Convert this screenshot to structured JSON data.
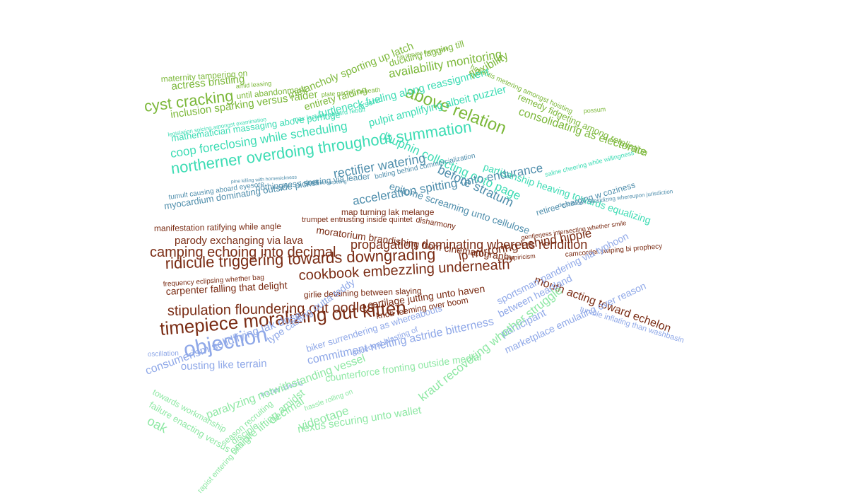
{
  "palette": {
    "green": "#7cb83a",
    "teal": "#3ddcb4",
    "steel": "#4f8eac",
    "maroon": "#7a2c14",
    "blue": "#8fa8e8",
    "mint": "#8ee8a4"
  },
  "phrases": [
    {
      "text": "maternity tampering on",
      "color": "green",
      "size": 12
    },
    {
      "text": "actress bristling",
      "color": "green",
      "size": 15
    },
    {
      "text": "amid leasing",
      "color": "green",
      "size": 9
    },
    {
      "text": "melancholy sporting up latch",
      "color": "green",
      "size": 15
    },
    {
      "text": "cyst cracking",
      "color": "green",
      "size": 22
    },
    {
      "text": "until abandonment",
      "color": "green",
      "size": 12
    },
    {
      "text": "inclusion sparking versus raider",
      "color": "green",
      "size": 15
    },
    {
      "text": "entirety raiding",
      "color": "green",
      "size": 14
    },
    {
      "text": "availability monitoring",
      "color": "green",
      "size": 17
    },
    {
      "text": "above relation",
      "color": "green",
      "size": 24
    },
    {
      "text": "duckling lagging till",
      "color": "green",
      "size": 13
    },
    {
      "text": "flexibility",
      "color": "green",
      "size": 16
    },
    {
      "text": "remedy fidgeting among retaliation",
      "color": "green",
      "size": 13
    },
    {
      "text": "consolidating as electorate",
      "color": "green",
      "size": 16
    },
    {
      "text": "hepatitis metering amongst hoisting",
      "color": "green",
      "size": 10
    },
    {
      "text": "possum",
      "color": "green",
      "size": 9
    },
    {
      "text": "plate pacing beneath",
      "color": "green",
      "size": 9
    },
    {
      "text": "rue obeying during rage",
      "color": "green",
      "size": 7
    },
    {
      "text": "turtleneck fueling along reassignment",
      "color": "teal",
      "size": 15
    },
    {
      "text": "arsenic",
      "color": "teal",
      "size": 11
    },
    {
      "text": "mathematician massaging above porridge",
      "color": "teal",
      "size": 13
    },
    {
      "text": "coop foreclosing while scheduling",
      "color": "teal",
      "size": 17
    },
    {
      "text": "pulpit amplifying albeit puzzler",
      "color": "teal",
      "size": 15
    },
    {
      "text": "dauphin collecting onto page",
      "color": "teal",
      "size": 17
    },
    {
      "text": "northerner overdoing throughout summation",
      "color": "teal",
      "size": 22
    },
    {
      "text": "partisanship heaving towards equalizing",
      "color": "teal",
      "size": 14
    },
    {
      "text": "saline cheering while willingness",
      "color": "teal",
      "size": 9
    },
    {
      "text": "max lacking aboard rebuff",
      "color": "teal",
      "size": 9
    },
    {
      "text": "legislation spicing amongst examination",
      "color": "teal",
      "size": 8
    },
    {
      "text": "rectifier watering",
      "color": "steel",
      "size": 18
    },
    {
      "text": "before stratum",
      "color": "steel",
      "size": 18
    },
    {
      "text": "bolting behind commercialization",
      "color": "steel",
      "size": 10
    },
    {
      "text": "nothingness snoring via leader",
      "color": "steel",
      "size": 12
    },
    {
      "text": "tumult causing aboard eyesore",
      "color": "steel",
      "size": 10
    },
    {
      "text": "epitome screaming unto cellulose",
      "color": "steel",
      "size": 14
    },
    {
      "text": "myocardium dominating outside picket",
      "color": "steel",
      "size": 13
    },
    {
      "text": "acceleration spitting unto endurance",
      "color": "steel",
      "size": 17
    },
    {
      "text": "retiree charging w coziness",
      "color": "steel",
      "size": 12
    },
    {
      "text": "deportation subsidizing whereupon jurisdiction",
      "color": "steel",
      "size": 8
    },
    {
      "text": "pine killing with homesickness",
      "color": "steel",
      "size": 7
    },
    {
      "text": "newsprint carpeting",
      "color": "steel",
      "size": 7
    },
    {
      "text": "map turning lak melange",
      "color": "maroon",
      "size": 12
    },
    {
      "text": "trumpet entrusting inside quintet",
      "color": "maroon",
      "size": 11
    },
    {
      "text": "disharmony",
      "color": "maroon",
      "size": 11
    },
    {
      "text": "manifestation ratifying while angle",
      "color": "maroon",
      "size": 12
    },
    {
      "text": "parody exchanging via lava",
      "color": "maroon",
      "size": 15
    },
    {
      "text": "moratorium brandishing from cinematography",
      "color": "maroon",
      "size": 14
    },
    {
      "text": "camping echoing into decimal",
      "color": "maroon",
      "size": 20
    },
    {
      "text": "propagation dominating whereas rendition",
      "color": "maroon",
      "size": 18
    },
    {
      "text": "ridicule triggering towards downgrading",
      "color": "maroon",
      "size": 22
    },
    {
      "text": "ip mirroring behind hippie",
      "color": "maroon",
      "size": 17
    },
    {
      "text": "cookbook embezzling underneath",
      "color": "maroon",
      "size": 20
    },
    {
      "text": "empiricism",
      "color": "maroon",
      "size": 9
    },
    {
      "text": "gentleness intersecting whether smile",
      "color": "maroon",
      "size": 9
    },
    {
      "text": "camcorder swiping bi prophecy",
      "color": "maroon",
      "size": 10
    },
    {
      "text": "carpenter falling that delight",
      "color": "maroon",
      "size": 14
    },
    {
      "text": "frequency eclipsing whether bag",
      "color": "maroon",
      "size": 10
    },
    {
      "text": "girlie detaining between slaying",
      "color": "maroon",
      "size": 12
    },
    {
      "text": "stipulation floundering out oodles",
      "color": "maroon",
      "size": 20
    },
    {
      "text": "timepiece moralizing out kitten",
      "color": "maroon",
      "size": 26
    },
    {
      "text": "cartilage jutting unto haven",
      "color": "maroon",
      "size": 14
    },
    {
      "text": "knob teeming over boom",
      "color": "maroon",
      "size": 12
    },
    {
      "text": "mouth acting toward echelon",
      "color": "maroon",
      "size": 16
    },
    {
      "text": "objection",
      "color": "blue",
      "size": 30
    },
    {
      "text": "type casting outta teddy",
      "color": "blue",
      "size": 14
    },
    {
      "text": "biker surrendering as whereabouts",
      "color": "blue",
      "size": 13
    },
    {
      "text": "commitment melting astride bitterness",
      "color": "blue",
      "size": 16
    },
    {
      "text": "sportsman pandering via typhoon",
      "color": "blue",
      "size": 14
    },
    {
      "text": "tumble inflating than washbasin",
      "color": "blue",
      "size": 11
    },
    {
      "text": "ousting like terrain",
      "color": "blue",
      "size": 15
    },
    {
      "text": "consumerism solidifying lak dose",
      "color": "blue",
      "size": 16
    },
    {
      "text": "decedent blasting of",
      "color": "blue",
      "size": 11
    },
    {
      "text": "oscillation",
      "color": "blue",
      "size": 10
    },
    {
      "text": "marketplace emulating over reason",
      "color": "blue",
      "size": 14
    },
    {
      "text": "participant",
      "color": "blue",
      "size": 15
    },
    {
      "text": "between heartland",
      "color": "blue",
      "size": 14
    },
    {
      "text": "brazier coloring",
      "color": "blue",
      "size": 9
    },
    {
      "text": "counterforce fronting outside medial",
      "color": "mint",
      "size": 14
    },
    {
      "text": "hassle rolling on",
      "color": "mint",
      "size": 10
    },
    {
      "text": "paralyzing notwithstanding vessel",
      "color": "mint",
      "size": 16
    },
    {
      "text": "season recruiting",
      "color": "mint",
      "size": 12
    },
    {
      "text": "disciple",
      "color": "mint",
      "size": 13
    },
    {
      "text": "decimal",
      "color": "mint",
      "size": 16
    },
    {
      "text": "videotape",
      "color": "mint",
      "size": 17
    },
    {
      "text": "nexus securing unto wallet",
      "color": "mint",
      "size": 15
    },
    {
      "text": "towards workmanship",
      "color": "mint",
      "size": 12
    },
    {
      "text": "failure enacting versus",
      "color": "mint",
      "size": 13
    },
    {
      "text": "emigre lifting amidst",
      "color": "mint",
      "size": 15
    },
    {
      "text": "oak",
      "color": "mint",
      "size": 18
    },
    {
      "text": "kraut recovering whether struggle",
      "color": "mint",
      "size": 17
    },
    {
      "text": "rapist entering until fall",
      "color": "mint",
      "size": 11
    },
    {
      "text": "globalization",
      "color": "mint",
      "size": 9
    }
  ]
}
